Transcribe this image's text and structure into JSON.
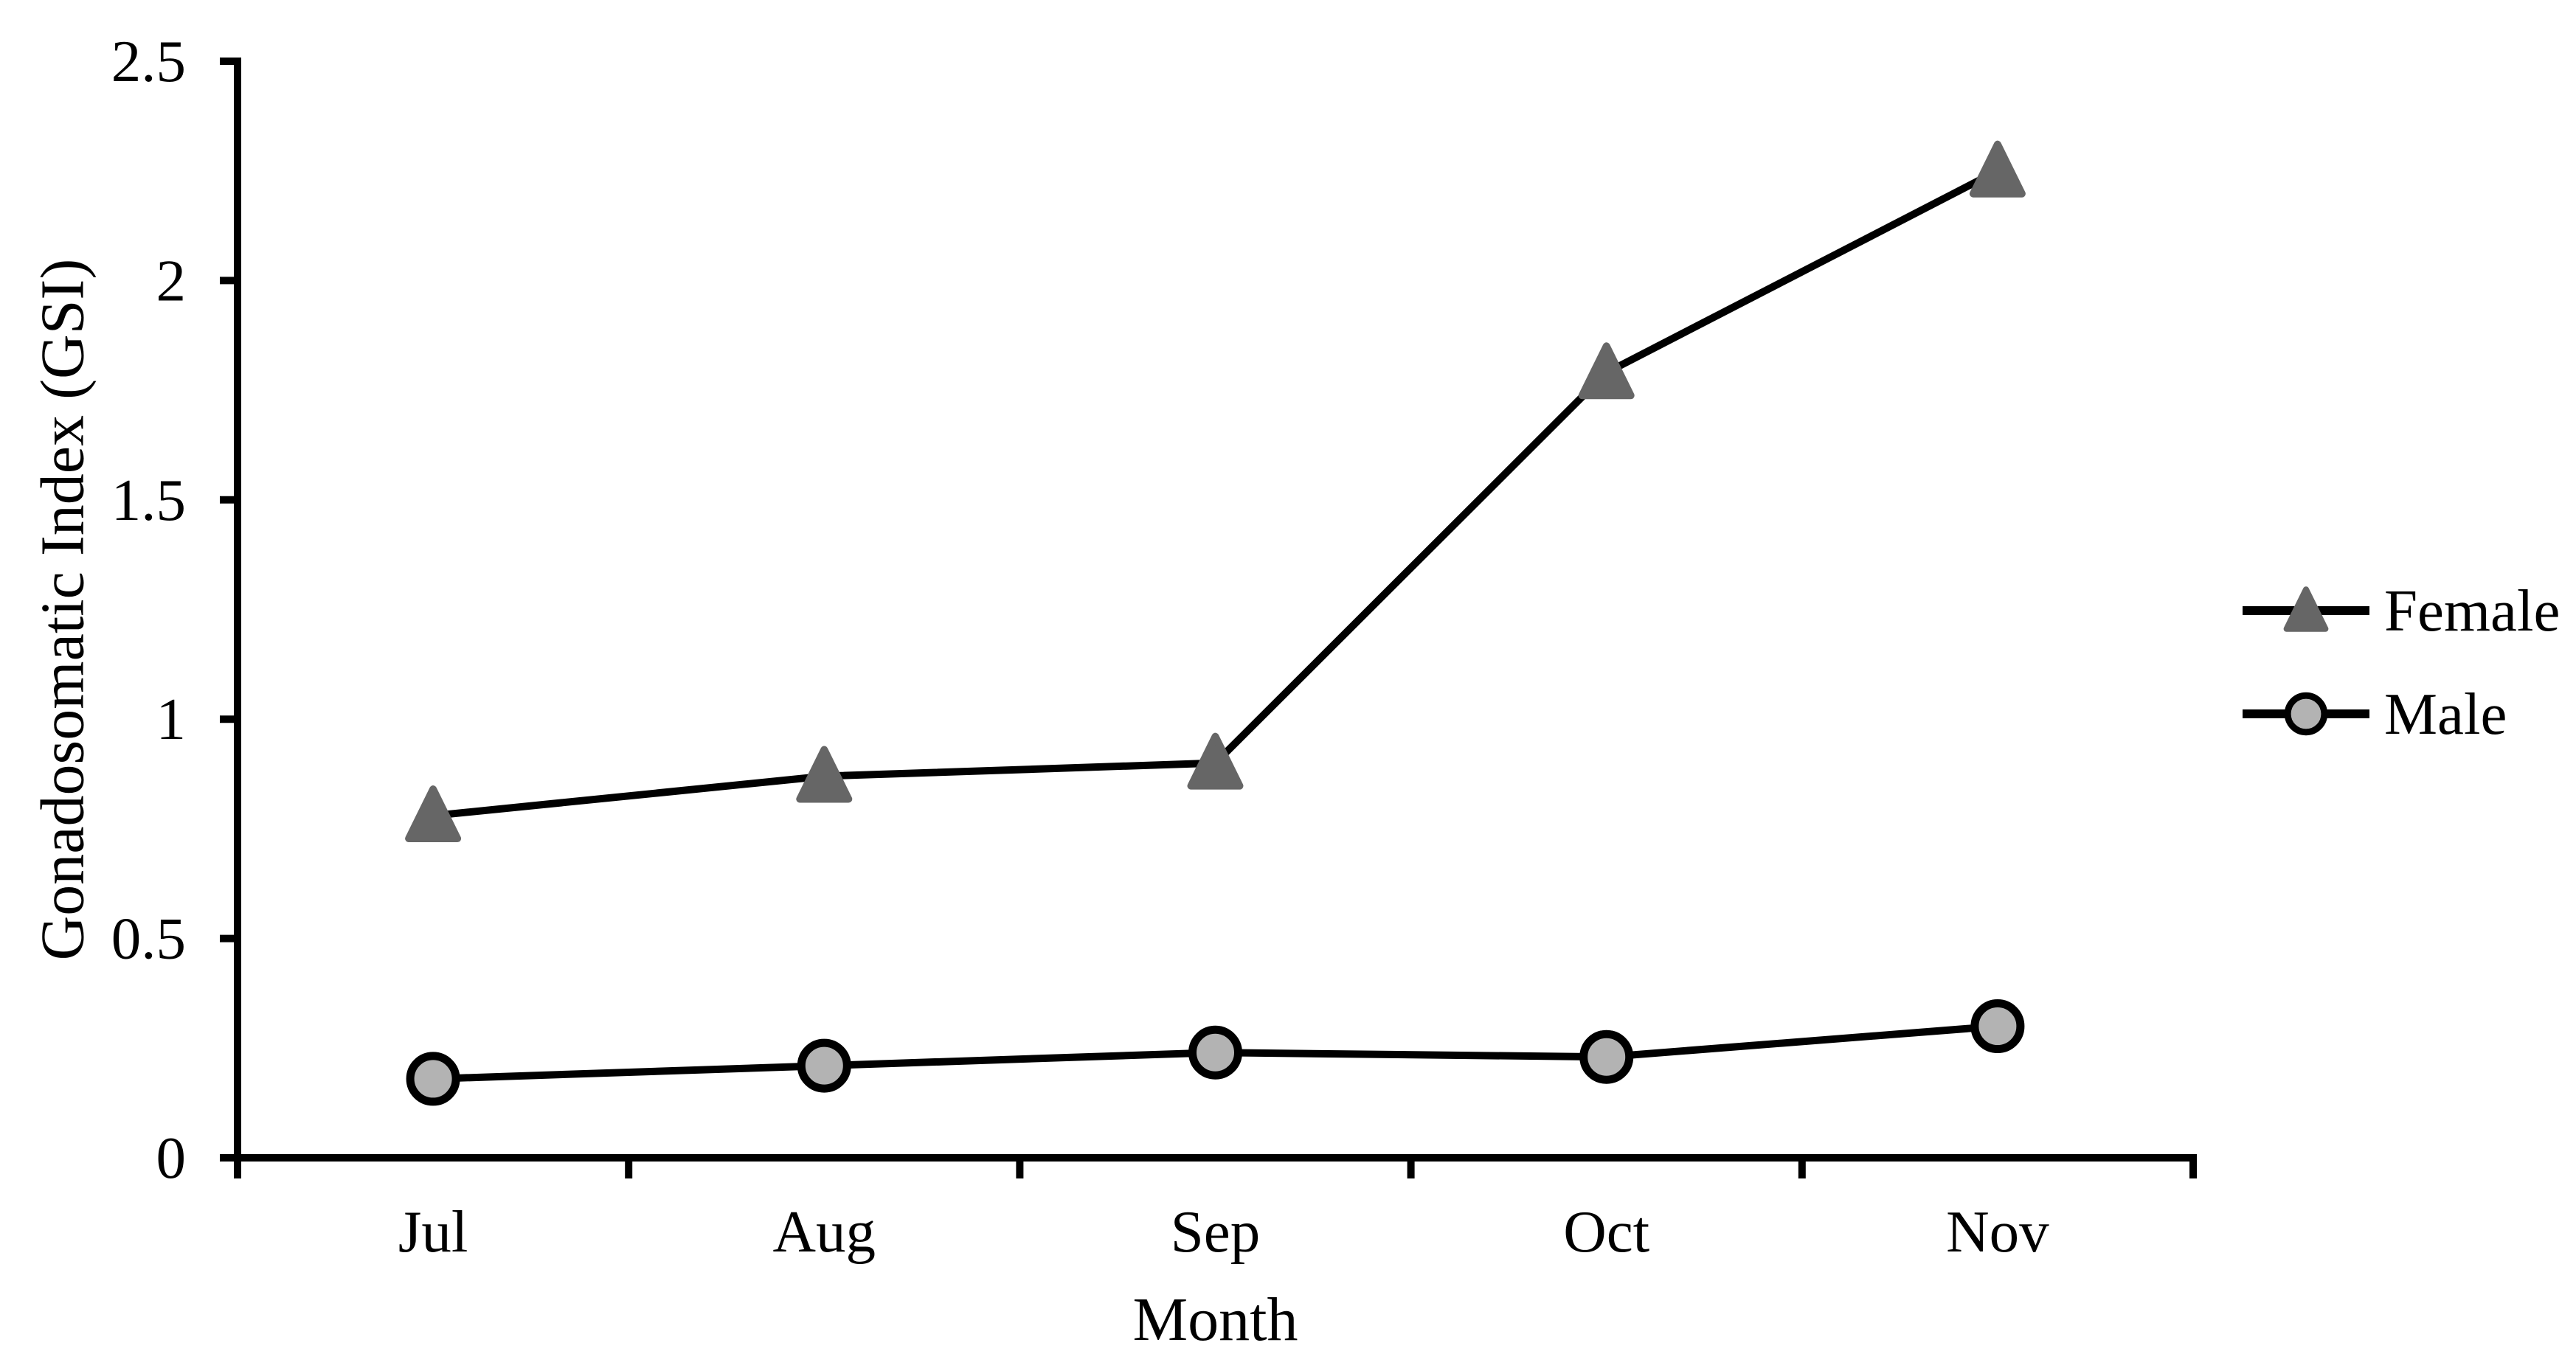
{
  "figure": {
    "background": "#ffffff"
  },
  "chart_data": {
    "type": "line",
    "title": "",
    "categories": [
      "Jul",
      "Aug",
      "Sep",
      "Oct",
      "Nov"
    ],
    "series": [
      {
        "name": "Female",
        "values": [
          0.78,
          0.87,
          0.9,
          1.79,
          2.25
        ],
        "marker": "triangle",
        "marker_color": "#666666",
        "line_color": "#000000"
      },
      {
        "name": "Male",
        "values": [
          0.18,
          0.21,
          0.24,
          0.23,
          0.3
        ],
        "marker": "circle",
        "marker_color": "#b3b3b3",
        "marker_outline": "#000000",
        "line_color": "#000000"
      }
    ],
    "xlabel": "Month",
    "ylabel": "Gonadosomatic Index (GSI)",
    "ylim": [
      0,
      2.5
    ],
    "ytick_step": 0.5,
    "ytick_labels": [
      "0",
      "0.5",
      "1",
      "1.5",
      "2",
      "2.5"
    ],
    "grid": false,
    "legend_position": "right",
    "axis_color": "#000000",
    "text_color": "#000000"
  }
}
